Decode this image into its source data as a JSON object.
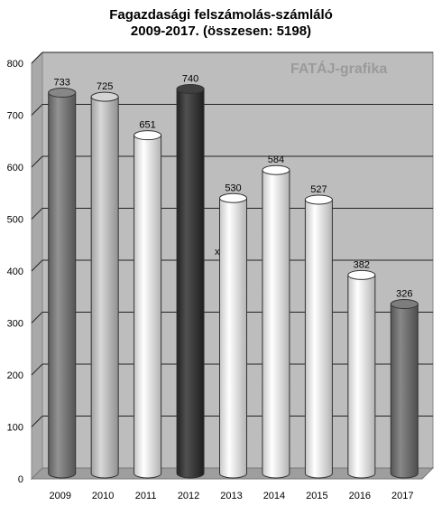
{
  "chart_data": {
    "type": "bar",
    "title": "Fagazdasági felszámolás-számláló",
    "subtitle": "2009-2017. (összesen: 5198)",
    "categories": [
      "2009",
      "2010",
      "2011",
      "2012",
      "2013",
      "2014",
      "2015",
      "2016",
      "2017"
    ],
    "values": [
      733,
      725,
      651,
      740,
      530,
      584,
      527,
      382,
      326
    ],
    "bar_colors": [
      "#7a7a7a",
      "#cfcfcf",
      "#ffffff",
      "#2b2b2b",
      "#ffffff",
      "#ffffff",
      "#ffffff",
      "#ffffff",
      "#6e6e6e"
    ],
    "yticks": [
      0,
      100,
      200,
      300,
      400,
      500,
      600,
      700,
      800
    ],
    "ylim": [
      0,
      800
    ],
    "xlabel": "",
    "ylabel": "",
    "grid": true,
    "bar_shape": "3d-cylinder",
    "watermark": "FATÁJ-grafika",
    "stray_mark": "x"
  }
}
